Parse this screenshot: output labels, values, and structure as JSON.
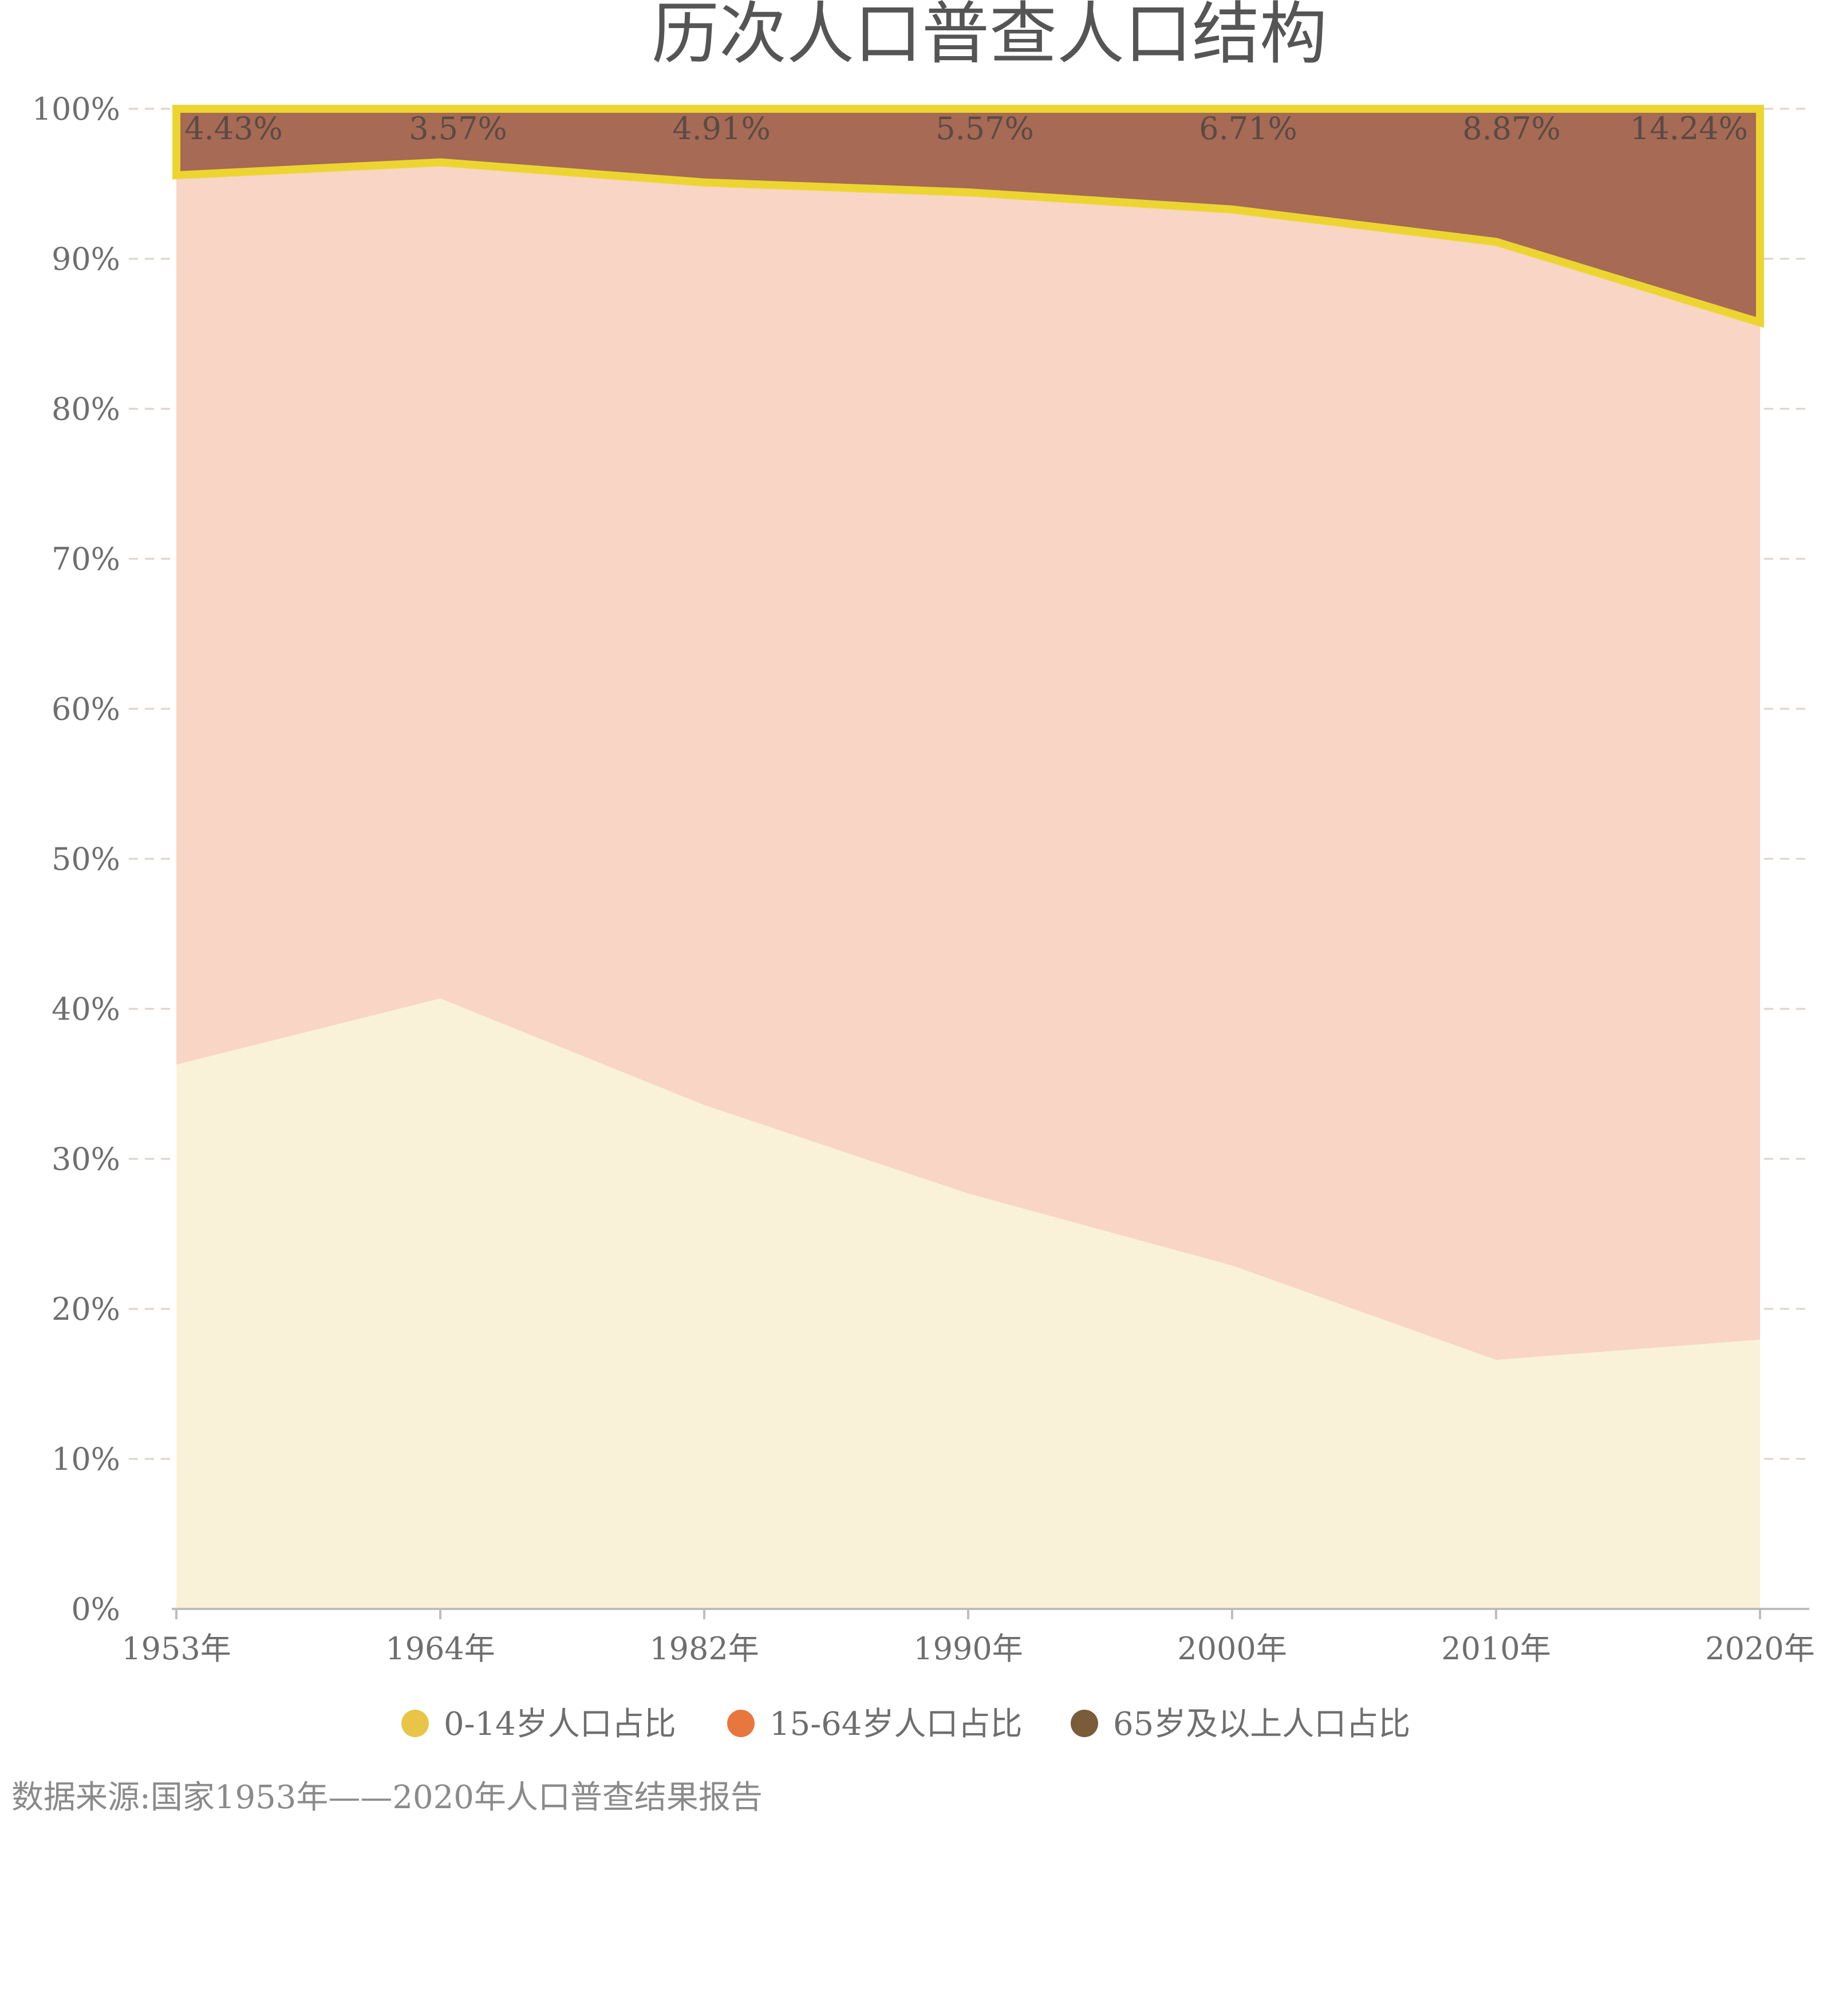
{
  "chart_data": {
    "type": "area",
    "stacked": true,
    "normalized": true,
    "title": "历次人口普查人口结构",
    "categories": [
      "1953年",
      "1964年",
      "1982年",
      "1990年",
      "2000年",
      "2010年",
      "2020年"
    ],
    "y_ticks": [
      "0%",
      "10%",
      "20%",
      "30%",
      "40%",
      "50%",
      "60%",
      "70%",
      "80%",
      "90%",
      "100%"
    ],
    "ylim": [
      0,
      100
    ],
    "grid": true,
    "legend_position": "bottom",
    "series": [
      {
        "name": "0-14岁人口占比",
        "values": [
          36.28,
          40.69,
          33.59,
          27.69,
          22.89,
          16.6,
          17.95
        ],
        "color": "#e8c547",
        "fill": "#faf2d8"
      },
      {
        "name": "15-64岁人口占比",
        "values": [
          59.29,
          55.74,
          61.5,
          66.74,
          70.4,
          74.53,
          67.81
        ],
        "color": "#e8773f",
        "fill": "#f8d5c4"
      },
      {
        "name": "65岁及以上人口占比",
        "values": [
          4.43,
          3.57,
          4.91,
          5.57,
          6.71,
          8.87,
          14.24
        ],
        "color": "#7a5c3a",
        "fill": "#a66a55"
      }
    ],
    "data_labels": [
      "4.43%",
      "3.57%",
      "4.91%",
      "5.57%",
      "6.71%",
      "8.87%",
      "14.24%"
    ],
    "highlight_series": "65岁及以上人口占比",
    "highlight_color": "#ecd531"
  },
  "source": "数据来源:国家1953年——2020年人口普查结果报告"
}
